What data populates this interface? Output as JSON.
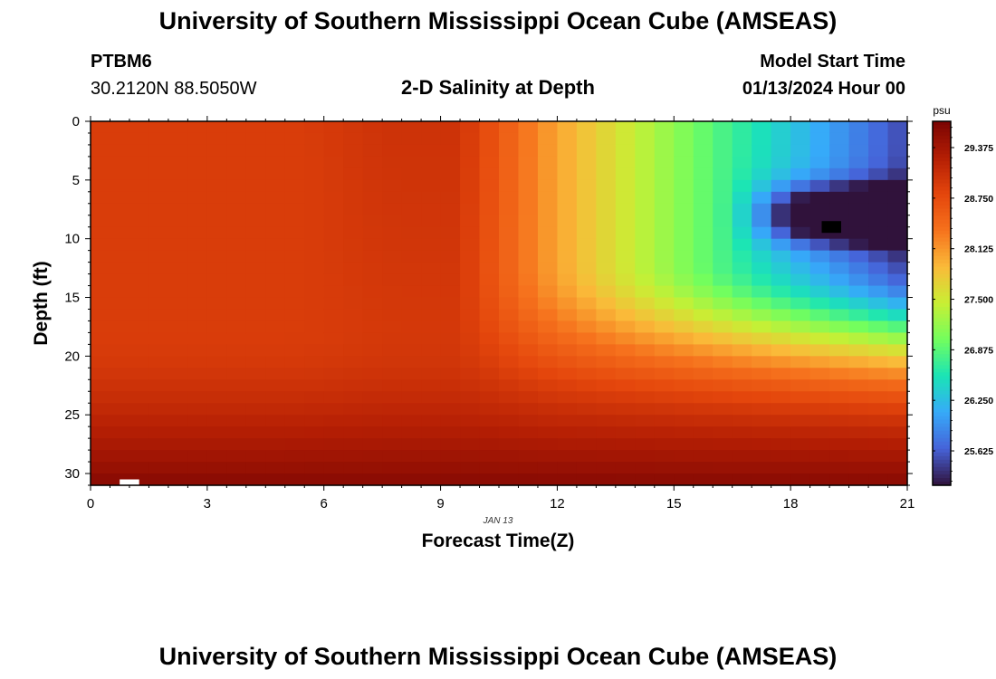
{
  "header": {
    "title": "University of Southern Mississippi Ocean Cube (AMSEAS)",
    "footer_title": "University of Southern Mississippi Ocean Cube (AMSEAS)",
    "station": "PTBM6",
    "coords": "30.2120N  88.5050W",
    "plot_title": "2-D Salinity at Depth",
    "start_label": "Model Start Time",
    "start_value": "01/13/2024 Hour 00"
  },
  "chart_data": {
    "type": "heatmap",
    "title": "2-D Salinity at Depth",
    "xlabel": "Forecast Time(Z)",
    "ylabel": "Depth (ft)",
    "date_label": "JAN 13",
    "x_ticks": [
      "0",
      "3",
      "6",
      "9",
      "12",
      "15",
      "18",
      "21"
    ],
    "y_ticks": [
      "0",
      "5",
      "10",
      "15",
      "20",
      "25",
      "30"
    ],
    "xlim": [
      0,
      21
    ],
    "ylim": [
      0,
      31
    ],
    "colorbar": {
      "unit": "psu",
      "range": [
        25.2,
        29.7
      ],
      "ticks": [
        "29.375",
        "28.750",
        "28.125",
        "27.500",
        "26.875",
        "26.250",
        "25.625"
      ]
    },
    "grid": {
      "x_step_hours": 0.5,
      "y_step_ft": 1,
      "nx": 42,
      "ny": 31
    },
    "description": "Salinity (psu) vs forecast hour and depth; ~28.9 at surface early, ~29.6 near bottom early, fresh lens (~25.3) at 4-12 ft around hours 18-21",
    "markers": [
      {
        "color": "#000000",
        "hour_range": [
          18.8,
          19.3
        ],
        "depth_range": [
          8.5,
          9.5
        ]
      },
      {
        "color": "#ffffff",
        "hour_range": [
          0.75,
          1.25
        ],
        "depth_range": [
          30.5,
          31.0
        ]
      }
    ]
  }
}
